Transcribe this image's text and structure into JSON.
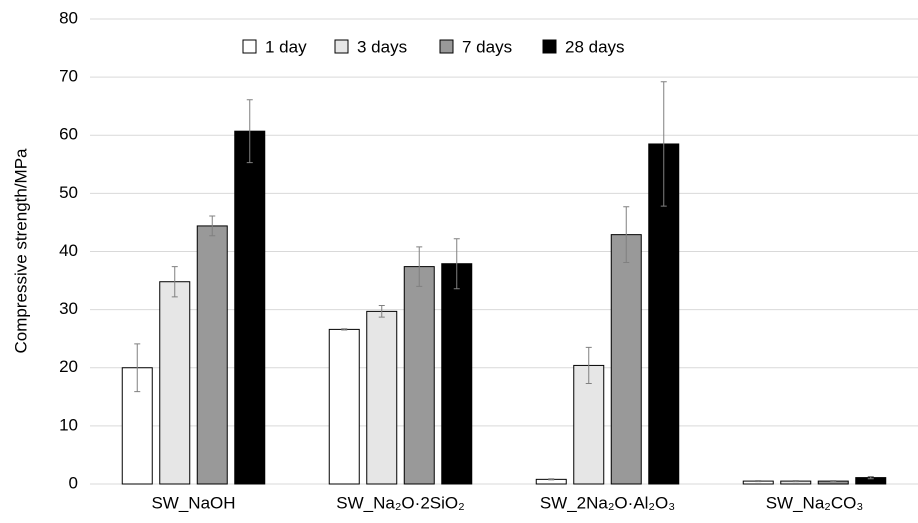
{
  "chart_data": {
    "type": "bar",
    "y_label": "Compressive strength/MPa",
    "categories": [
      "SW_NaOH",
      "SW_Na₂O·2SiO₂",
      "SW_2Na₂O·Al₂O₃",
      "SW_Na₂CO₃"
    ],
    "series": [
      {
        "name": "1 day",
        "color": "#ffffff",
        "values": [
          20,
          26.6,
          0.8,
          0.5
        ],
        "errors": [
          4.1,
          0.1,
          0.1,
          0.1
        ]
      },
      {
        "name": "3 days",
        "color": "#e6e6e6",
        "values": [
          34.8,
          29.7,
          20.4,
          0.5
        ],
        "errors": [
          2.6,
          1,
          3.1,
          0.1
        ]
      },
      {
        "name": "7 days",
        "color": "#999999",
        "values": [
          44.4,
          37.4,
          42.9,
          0.5
        ],
        "errors": [
          1.7,
          3.4,
          4.8,
          0.1
        ]
      },
      {
        "name": "28 days",
        "color": "#000000",
        "values": [
          60.7,
          37.9,
          58.5,
          1.1
        ],
        "errors": [
          5.4,
          4.3,
          10.7,
          0.2
        ]
      }
    ],
    "ylim": [
      0,
      80
    ],
    "yticks": [
      0,
      10,
      20,
      30,
      40,
      50,
      60,
      70,
      80
    ],
    "grid": true,
    "legend": "top"
  }
}
